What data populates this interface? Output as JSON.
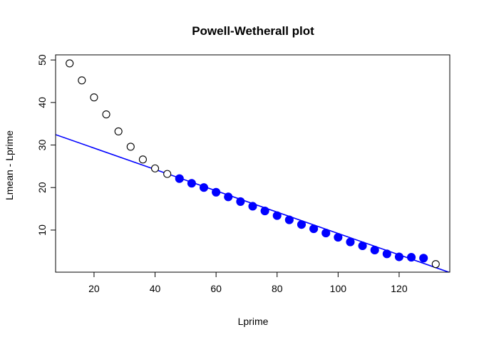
{
  "chart_data": {
    "type": "scatter",
    "title": "Powell-Wetherall plot",
    "xlabel": "Lprime",
    "ylabel": "Lmean - Lprime",
    "xlim": [
      7.4,
      136.6
    ],
    "ylim": [
      0.1,
      51.2
    ],
    "xticks": [
      20,
      40,
      60,
      80,
      100,
      120
    ],
    "yticks": [
      10,
      20,
      30,
      40,
      50
    ],
    "grid": false,
    "legend": "none",
    "colors": {
      "fitted_points": "#0000ff",
      "fit_line": "#0000ff",
      "other_points": "#000000"
    },
    "series": [
      {
        "marker": "open-circle",
        "x": [
          12,
          16,
          20,
          24,
          28,
          32,
          36,
          40,
          44,
          132
        ],
        "y": [
          49.2,
          45.2,
          41.2,
          37.2,
          33.2,
          29.6,
          26.6,
          24.5,
          23.2,
          2.0
        ]
      },
      {
        "marker": "filled-circle",
        "x": [
          48,
          52,
          56,
          60,
          64,
          68,
          72,
          76,
          80,
          84,
          88,
          92,
          96,
          100,
          104,
          108,
          112,
          116,
          120,
          124,
          128
        ],
        "y": [
          22.1,
          21.0,
          20.0,
          18.9,
          17.8,
          16.7,
          15.6,
          14.5,
          13.4,
          12.4,
          11.3,
          10.3,
          9.3,
          8.3,
          7.2,
          6.3,
          5.3,
          4.4,
          3.7,
          3.6,
          3.4
        ]
      }
    ],
    "regression_line": {
      "intercept": 34.3,
      "slope": -0.251
    }
  }
}
